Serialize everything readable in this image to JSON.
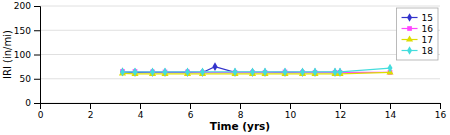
{
  "chart_data": {
    "type": "line",
    "xlabel": "Time (yrs)",
    "ylabel": "IRI (in/mi)",
    "series": [
      {
        "name": "15",
        "color": "#3333CC",
        "marker": "diamond",
        "x": [
          3.3,
          3.8,
          4.5,
          5.0,
          5.9,
          6.5,
          7.0,
          7.8,
          8.5,
          9.0,
          9.8,
          10.5,
          11.0,
          11.8,
          12.0
        ],
        "values": [
          64,
          63,
          63,
          63,
          63,
          63,
          75,
          63,
          63,
          63,
          63,
          63,
          63,
          63,
          63
        ]
      },
      {
        "name": "16",
        "color": "#FF44FF",
        "marker": "square",
        "x": [
          3.3,
          3.8,
          4.5,
          5.0,
          5.9,
          6.5,
          7.8,
          8.5,
          9.0,
          9.8,
          10.5,
          11.0,
          11.8,
          12.0,
          14.0
        ],
        "values": [
          65,
          65,
          64,
          64,
          64,
          63,
          63,
          63,
          63,
          64,
          63,
          63,
          63,
          63,
          63
        ]
      },
      {
        "name": "17",
        "color": "#DDDD00",
        "marker": "triangle-up",
        "x": [
          3.3,
          3.8,
          4.5,
          5.0,
          5.9,
          6.5,
          7.8,
          8.5,
          9.0,
          9.8,
          10.5,
          11.0,
          11.8,
          12.0,
          14.0
        ],
        "values": [
          61,
          60,
          60,
          60,
          60,
          60,
          60,
          60,
          60,
          60,
          60,
          60,
          60,
          60,
          63
        ]
      },
      {
        "name": "18",
        "color": "#44DDDD",
        "marker": "diamond",
        "x": [
          3.3,
          3.8,
          4.5,
          5.0,
          5.9,
          6.5,
          7.8,
          8.5,
          9.0,
          9.8,
          10.5,
          11.0,
          11.8,
          12.0,
          14.0
        ],
        "values": [
          64,
          64,
          64,
          64,
          64,
          64,
          64,
          64,
          64,
          64,
          64,
          64,
          64,
          64,
          72
        ]
      }
    ],
    "xlim": [
      0,
      16
    ],
    "ylim": [
      0,
      200
    ],
    "xticks": [
      0,
      2,
      4,
      6,
      8,
      10,
      12,
      14,
      16
    ],
    "yticks": [
      0,
      50,
      100,
      150,
      200
    ],
    "grid": true,
    "legend": "upper right"
  }
}
